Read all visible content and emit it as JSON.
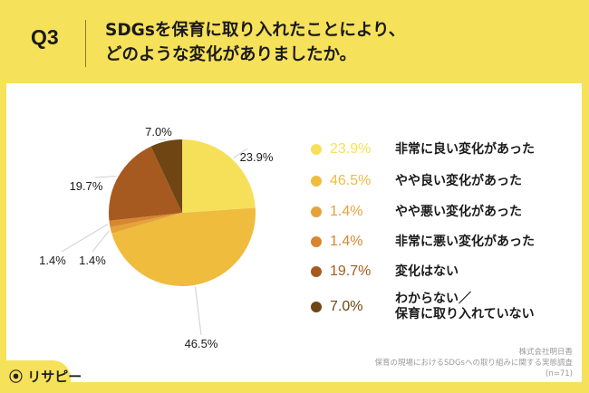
{
  "header": {
    "question_no": "Q3",
    "title_line1": "SDGsを保育に取り入れたことにより、",
    "title_line2": "どのような変化がありましたか。"
  },
  "chart_data": {
    "type": "pie",
    "title": "SDGsを保育に取り入れたことにより、どのような変化がありましたか。",
    "categories": [
      "非常に良い変化があった",
      "やや良い変化があった",
      "やや悪い変化があった",
      "非常に悪い変化があった",
      "変化はない",
      "わからない／保育に取り入れていない"
    ],
    "values": [
      23.9,
      46.5,
      1.4,
      1.4,
      19.7,
      7.0
    ],
    "value_labels": [
      "23.9%",
      "46.5%",
      "1.4%",
      "1.4%",
      "19.7%",
      "7.0%"
    ],
    "colors": [
      "#f6e05a",
      "#efbc3e",
      "#e4a33a",
      "#d8862f",
      "#a65a1f",
      "#6e4513"
    ],
    "legend_position": "right",
    "start": "top-clockwise"
  },
  "legend": [
    {
      "pct": "23.9%",
      "label": "非常に良い変化があった",
      "color": "#f6e05a"
    },
    {
      "pct": "46.5%",
      "label": "やや良い変化があった",
      "color": "#efbc3e"
    },
    {
      "pct": "1.4%",
      "label": "やや悪い変化があった",
      "color": "#e4a33a"
    },
    {
      "pct": "1.4%",
      "label": "非常に悪い変化があった",
      "color": "#d8862f"
    },
    {
      "pct": "19.7%",
      "label": "変化はない",
      "color": "#a65a1f"
    },
    {
      "pct": "7.0%",
      "label_line1": "わからない／",
      "label_line2": "保育に取り入れていない",
      "color": "#6e4513"
    }
  ],
  "source": {
    "company": "株式会社明日香",
    "survey": "保育の現場におけるSDGsへの取り組みに関する実態調査",
    "n": "(n=71)"
  },
  "logo": "リサピー"
}
